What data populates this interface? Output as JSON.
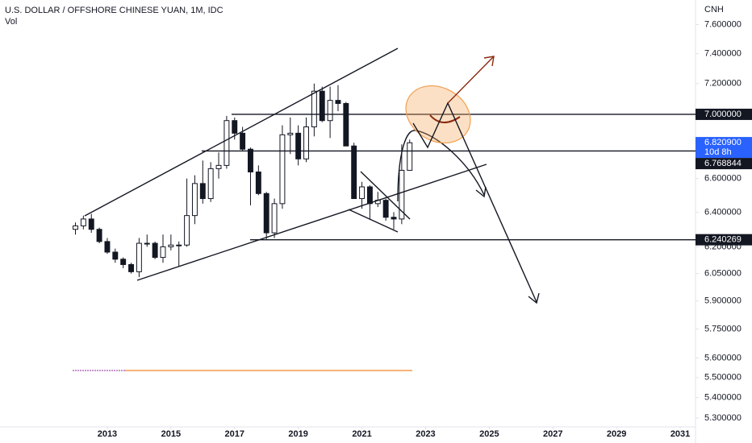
{
  "chart_data": {
    "type": "candlestick",
    "title": "U.S. DOLLAR / OFFSHORE CHINESE YUAN, 1M, IDC",
    "subtitle": "Vol",
    "y_axis_label": "CNH",
    "log_scale": true,
    "up_color": "#ffffff",
    "down_color": "#131722",
    "x": [
      2012.0,
      2012.25,
      2012.5,
      2012.75,
      2013.0,
      2013.25,
      2013.5,
      2013.75,
      2014.0,
      2014.25,
      2014.5,
      2014.75,
      2015.0,
      2015.25,
      2015.5,
      2015.75,
      2016.0,
      2016.25,
      2016.5,
      2016.75,
      2017.0,
      2017.25,
      2017.5,
      2017.75,
      2018.0,
      2018.25,
      2018.5,
      2018.75,
      2019.0,
      2019.25,
      2019.5,
      2019.75,
      2020.0,
      2020.25,
      2020.5,
      2020.75,
      2021.0,
      2021.25,
      2021.5,
      2021.75,
      2022.0,
      2022.25,
      2022.5
    ],
    "open": [
      6.3,
      6.32,
      6.36,
      6.3,
      6.23,
      6.17,
      6.13,
      6.1,
      6.06,
      6.22,
      6.22,
      6.14,
      6.2,
      6.21,
      6.21,
      6.38,
      6.57,
      6.48,
      6.66,
      6.68,
      6.96,
      6.88,
      6.78,
      6.64,
      6.51,
      6.28,
      6.45,
      6.87,
      6.88,
      6.72,
      6.92,
      7.15,
      6.96,
      7.09,
      7.07,
      6.8,
      6.48,
      6.55,
      6.45,
      6.47,
      6.37,
      6.36,
      6.65
    ],
    "high": [
      6.34,
      6.38,
      6.39,
      6.31,
      6.25,
      6.19,
      6.14,
      6.11,
      6.25,
      6.27,
      6.23,
      6.27,
      6.27,
      6.23,
      6.6,
      6.62,
      6.71,
      6.7,
      6.76,
      6.99,
      6.98,
      6.92,
      6.79,
      6.68,
      6.52,
      6.48,
      6.93,
      6.98,
      6.93,
      6.98,
      7.2,
      7.18,
      7.18,
      7.19,
      7.08,
      6.82,
      6.58,
      6.56,
      6.52,
      6.48,
      6.4,
      6.81,
      6.84
    ],
    "low": [
      6.27,
      6.3,
      6.28,
      6.22,
      6.16,
      6.11,
      6.08,
      6.05,
      6.03,
      6.2,
      6.13,
      6.11,
      6.18,
      6.09,
      6.2,
      6.33,
      6.45,
      6.46,
      6.6,
      6.66,
      6.84,
      6.77,
      6.44,
      6.5,
      6.24,
      6.25,
      6.42,
      6.75,
      6.68,
      6.7,
      6.86,
      6.95,
      6.85,
      7.02,
      6.82,
      6.5,
      6.42,
      6.36,
      6.43,
      6.35,
      6.3,
      6.33,
      6.65
    ],
    "close": [
      6.32,
      6.36,
      6.3,
      6.23,
      6.17,
      6.13,
      6.1,
      6.06,
      6.22,
      6.22,
      6.14,
      6.2,
      6.21,
      6.21,
      6.38,
      6.57,
      6.48,
      6.66,
      6.68,
      6.96,
      6.88,
      6.78,
      6.64,
      6.51,
      6.28,
      6.45,
      6.87,
      6.88,
      6.72,
      6.92,
      7.15,
      6.96,
      7.09,
      7.07,
      6.8,
      6.48,
      6.55,
      6.45,
      6.47,
      6.37,
      6.36,
      6.65,
      6.82
    ],
    "xlim": [
      2009.63,
      2031.48
    ],
    "xticks": [
      2013,
      2015,
      2017,
      2019,
      2021,
      2023,
      2025,
      2027,
      2029,
      2031
    ],
    "ylim": [
      5.257,
      7.773
    ],
    "yticks": [
      {
        "value": 7.6,
        "label": "7.600000"
      },
      {
        "value": 7.4,
        "label": "7.400000"
      },
      {
        "value": 7.2,
        "label": "7.200000"
      },
      {
        "value": 6.6,
        "label": "6.600000"
      },
      {
        "value": 6.4,
        "label": "6.400000"
      },
      {
        "value": 6.2,
        "label": "6.200000"
      },
      {
        "value": 6.05,
        "label": "6.050000"
      },
      {
        "value": 5.9,
        "label": "5.900000"
      },
      {
        "value": 5.75,
        "label": "5.750000"
      },
      {
        "value": 5.6,
        "label": "5.600000"
      },
      {
        "value": 5.5,
        "label": "5.500000"
      },
      {
        "value": 5.4,
        "label": "5.400000"
      },
      {
        "value": 5.3,
        "label": "5.300000"
      }
    ],
    "price_labels": [
      {
        "value": 7.0,
        "label": "7.000000",
        "color": "#131722"
      },
      {
        "value": 6.8209,
        "label": "6.820900",
        "color": "#2962ff"
      },
      {
        "value": 6.768844,
        "label": "6.768844",
        "color": "#131722"
      },
      {
        "value": 6.240269,
        "label": "6.240269",
        "color": "#131722"
      }
    ],
    "countdown": "10d 8h"
  }
}
